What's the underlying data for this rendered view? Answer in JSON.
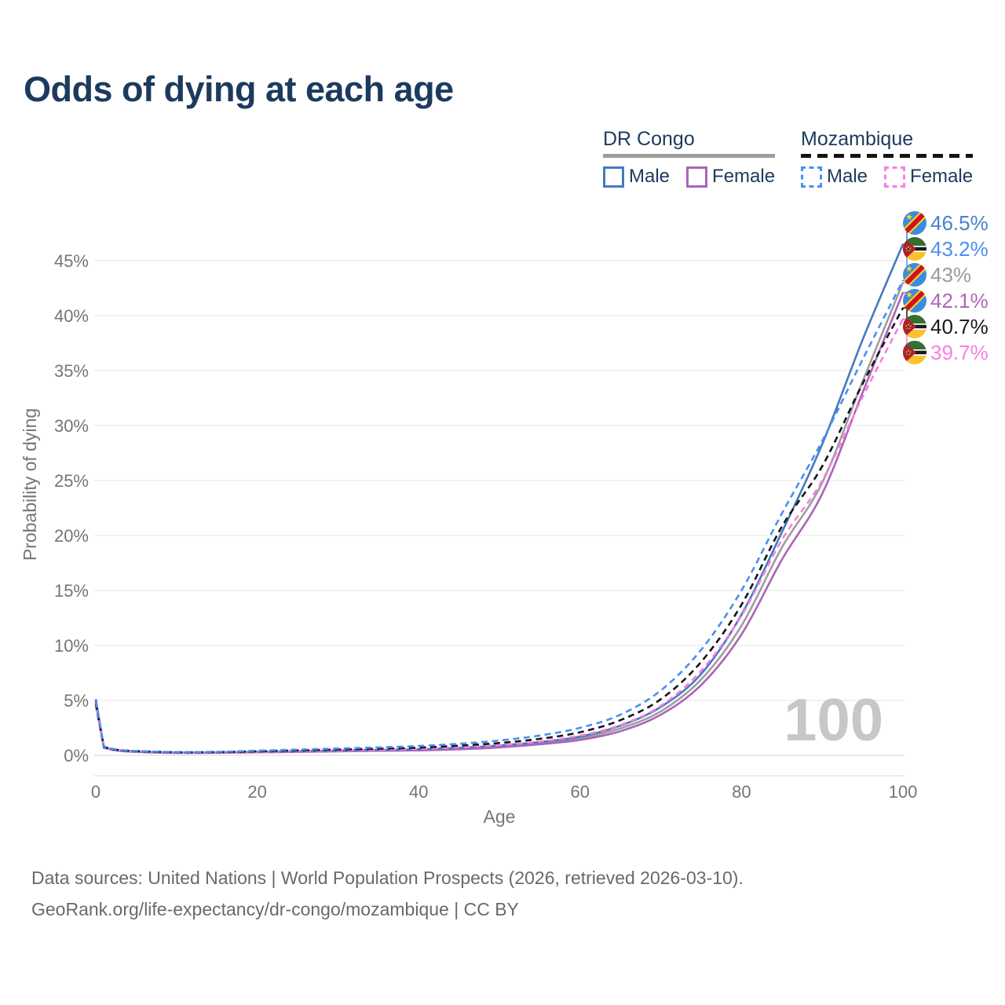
{
  "title": "Odds of dying at each age",
  "legend": {
    "groups": [
      {
        "name": "DR Congo",
        "underline": "solid",
        "items": [
          {
            "label": "Male",
            "color": "#4579bf",
            "dash": false
          },
          {
            "label": "Female",
            "color": "#ad63b9",
            "dash": false
          }
        ]
      },
      {
        "name": "Mozambique",
        "underline": "dashed",
        "items": [
          {
            "label": "Male",
            "color": "#4a90f2",
            "dash": true
          },
          {
            "label": "Female",
            "color": "#f97edf",
            "dash": true
          }
        ]
      }
    ]
  },
  "chart_data": {
    "type": "line",
    "title": "Odds of dying at each age",
    "xlabel": "Age",
    "ylabel": "Probability of dying",
    "x_ticks": [
      0,
      20,
      40,
      60,
      80,
      100
    ],
    "y_ticks": [
      "0%",
      "5%",
      "10%",
      "15%",
      "20%",
      "25%",
      "30%",
      "35%",
      "40%",
      "45%"
    ],
    "xlim": [
      0,
      100
    ],
    "ylim_percent": [
      0,
      48
    ],
    "grid": "horizontal",
    "legend_position": "top-right",
    "ages": [
      0,
      1,
      2,
      3,
      5,
      10,
      15,
      20,
      25,
      30,
      35,
      40,
      45,
      50,
      55,
      60,
      65,
      70,
      75,
      80,
      85,
      90,
      95,
      100
    ],
    "series": [
      {
        "name": "DR Congo Both",
        "country": "DR Congo",
        "sex": "Both",
        "color": "#9e9e9e",
        "dash": false,
        "values": [
          4.95,
          0.72,
          0.52,
          0.43,
          0.33,
          0.24,
          0.25,
          0.3,
          0.35,
          0.4,
          0.45,
          0.5,
          0.6,
          0.8,
          1.1,
          1.55,
          2.45,
          4.0,
          6.9,
          11.8,
          18.9,
          24.8,
          34.0,
          43.0
        ]
      },
      {
        "name": "DR Congo Female",
        "country": "DR Congo",
        "sex": "Female",
        "color": "#ad63b9",
        "dash": false,
        "values": [
          4.75,
          0.68,
          0.5,
          0.4,
          0.31,
          0.22,
          0.23,
          0.27,
          0.31,
          0.36,
          0.41,
          0.45,
          0.55,
          0.72,
          1.0,
          1.4,
          2.2,
          3.7,
          6.4,
          11.0,
          17.8,
          23.8,
          33.0,
          42.1
        ]
      },
      {
        "name": "DR Congo Male",
        "country": "DR Congo",
        "sex": "Male",
        "color": "#4579bf",
        "dash": false,
        "values": [
          5.1,
          0.75,
          0.55,
          0.45,
          0.35,
          0.26,
          0.27,
          0.33,
          0.38,
          0.44,
          0.5,
          0.55,
          0.68,
          0.9,
          1.2,
          1.7,
          2.7,
          4.4,
          7.4,
          12.8,
          20.3,
          28.3,
          37.8,
          46.5
        ]
      },
      {
        "name": "Mozambique Female",
        "country": "Mozambique",
        "sex": "Female",
        "color": "#f97edf",
        "dash": true,
        "values": [
          4.5,
          0.7,
          0.53,
          0.44,
          0.36,
          0.26,
          0.27,
          0.31,
          0.37,
          0.44,
          0.5,
          0.58,
          0.72,
          0.92,
          1.25,
          1.8,
          2.75,
          4.5,
          7.7,
          12.7,
          19.6,
          25.0,
          32.6,
          39.7
        ]
      },
      {
        "name": "Mozambique Both",
        "country": "Mozambique",
        "sex": "Both",
        "color": "#161616",
        "dash": true,
        "values": [
          4.7,
          0.75,
          0.56,
          0.46,
          0.38,
          0.28,
          0.29,
          0.36,
          0.44,
          0.52,
          0.6,
          0.7,
          0.88,
          1.12,
          1.5,
          2.1,
          3.2,
          5.1,
          8.5,
          13.7,
          20.8,
          26.3,
          33.8,
          40.7
        ]
      },
      {
        "name": "Mozambique Male",
        "country": "Mozambique",
        "sex": "Male",
        "color": "#4a90f2",
        "dash": true,
        "values": [
          4.9,
          0.8,
          0.6,
          0.5,
          0.4,
          0.3,
          0.32,
          0.42,
          0.52,
          0.62,
          0.72,
          0.85,
          1.05,
          1.35,
          1.8,
          2.5,
          3.7,
          5.9,
          9.6,
          15.0,
          22.0,
          28.6,
          36.0,
          43.2
        ]
      }
    ],
    "end_labels": [
      {
        "label": "46.5%",
        "series": "DR Congo Male",
        "flag": "dr-congo",
        "color": "#4c80c9"
      },
      {
        "label": "43.2%",
        "series": "Mozambique Male",
        "flag": "mozambique",
        "color": "#4a90f2"
      },
      {
        "label": "43%",
        "series": "DR Congo Both",
        "flag": "dr-congo",
        "color": "#9b9b9b"
      },
      {
        "label": "42.1%",
        "series": "DR Congo Female",
        "flag": "dr-congo",
        "color": "#b066b8"
      },
      {
        "label": "40.7%",
        "series": "Mozambique Both",
        "flag": "mozambique",
        "color": "#1a1a1a"
      },
      {
        "label": "39.7%",
        "series": "Mozambique Female",
        "flag": "mozambique",
        "color": "#fb7ee0"
      }
    ],
    "watermark": "100"
  },
  "footer": {
    "line1": "Data sources: United Nations | World Population Prospects (2026, retrieved 2026-03-10).",
    "line2": "GeoRank.org/life-expectancy/dr-congo/mozambique | CC BY"
  }
}
